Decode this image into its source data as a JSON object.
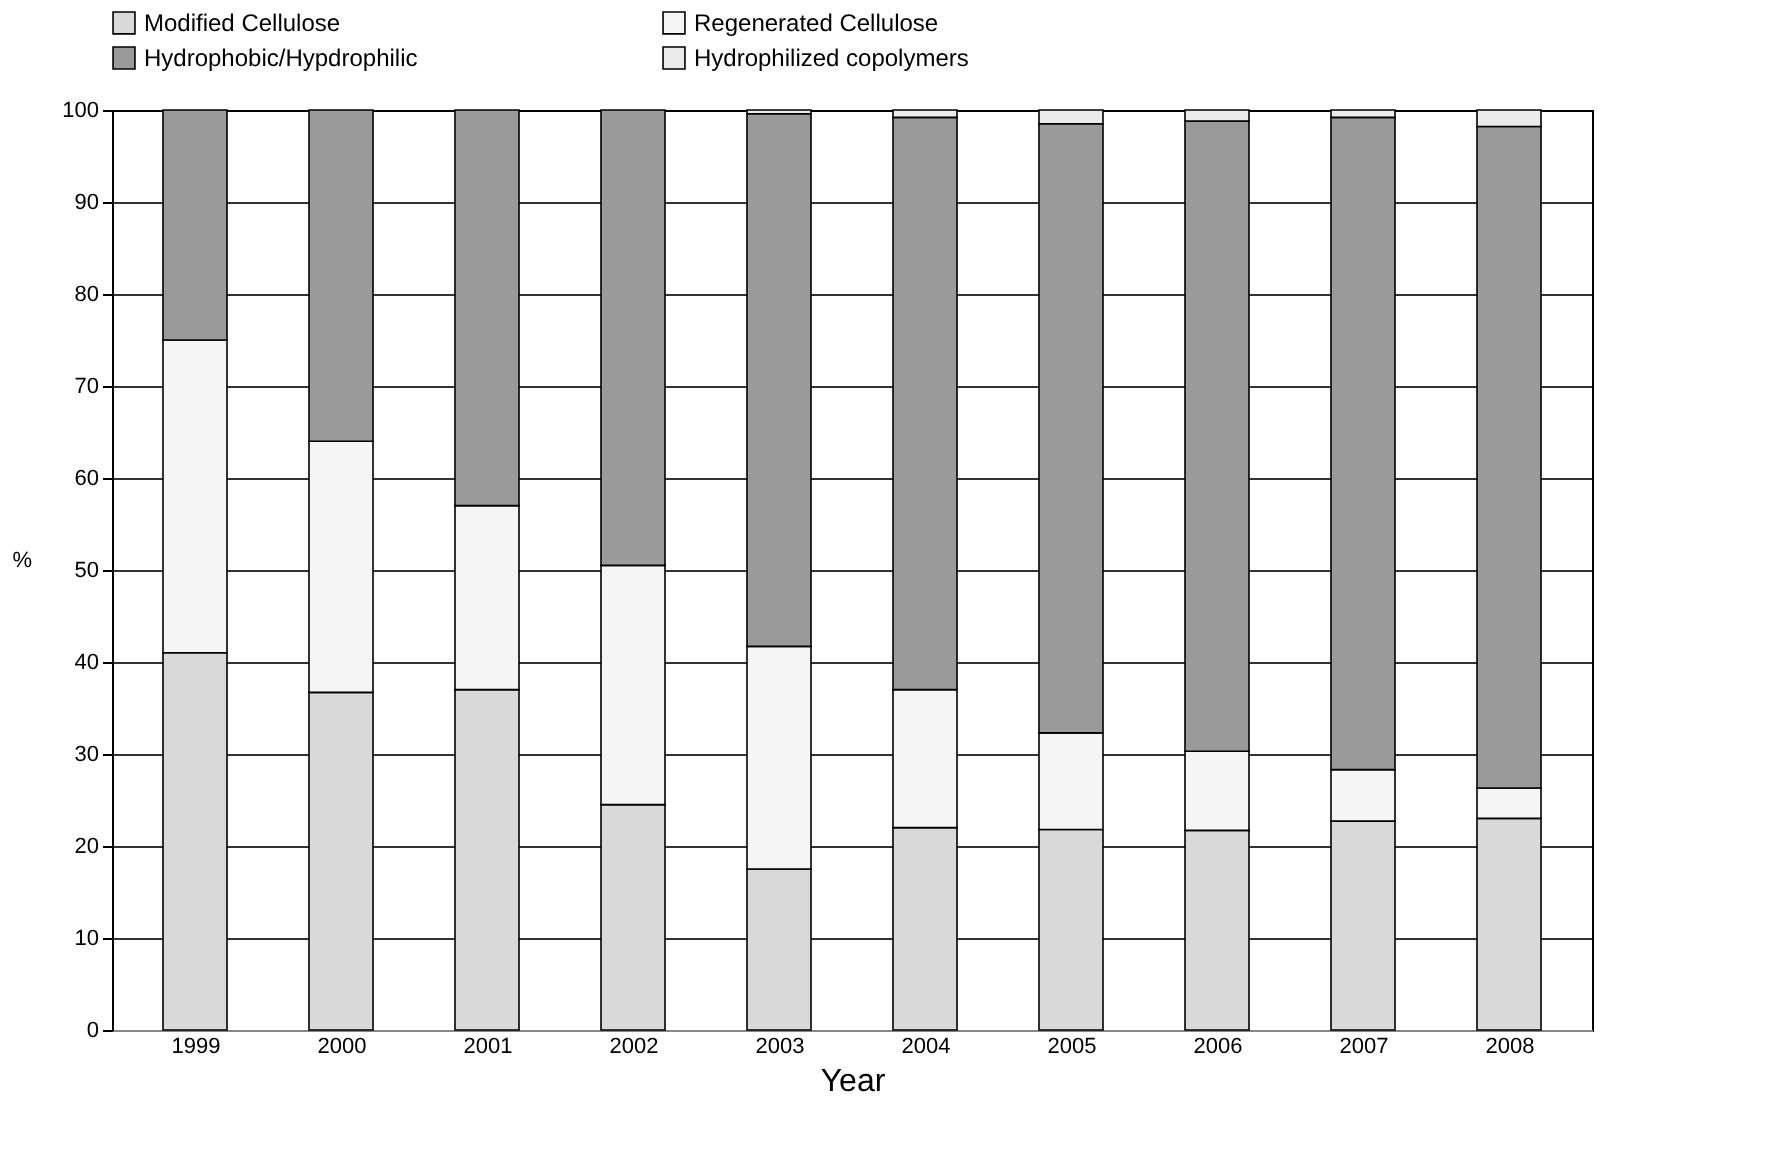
{
  "chart_data": {
    "type": "bar",
    "stacked": true,
    "xlabel": "Year",
    "ylabel": "%",
    "categories": [
      "1999",
      "2000",
      "2001",
      "2002",
      "2003",
      "2004",
      "2005",
      "2006",
      "2007",
      "2008"
    ],
    "series": [
      {
        "name": "Modified Cellulose",
        "color": "#d9d9d9",
        "values": [
          41,
          36.7,
          37,
          24.5,
          17.5,
          22,
          21.8,
          21.7,
          22.7,
          23
        ]
      },
      {
        "name": "Regenerated Cellulose",
        "color": "#f5f5f5",
        "values": [
          34,
          27.3,
          20,
          26,
          24.2,
          15,
          10.5,
          8.6,
          5.6,
          3.3
        ]
      },
      {
        "name": "Hydrophobic/Hypdrophilic",
        "color": "#9a9a9a",
        "values": [
          25,
          36,
          43,
          49.5,
          57.9,
          62.2,
          66.2,
          68.5,
          70.9,
          71.9
        ]
      },
      {
        "name": "Hydrophilized copolymers",
        "color": "#ebebeb",
        "values": [
          null,
          null,
          null,
          null,
          0.4,
          0.8,
          1.5,
          1.2,
          0.8,
          1.8
        ]
      }
    ],
    "ylim": [
      0,
      100
    ],
    "yticks": [
      0,
      10,
      20,
      30,
      40,
      50,
      60,
      70,
      80,
      90,
      100
    ],
    "grid": "y",
    "legend": "top"
  }
}
